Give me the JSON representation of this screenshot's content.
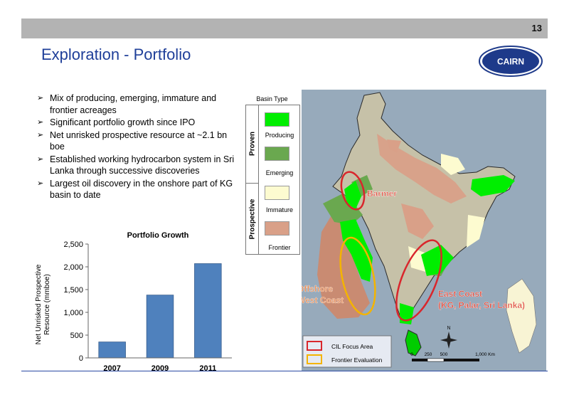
{
  "page": {
    "number": "13",
    "title": "Exploration - Portfolio"
  },
  "logo": {
    "text": "CAIRN"
  },
  "bullets": [
    "Mix of producing, emerging, immature and frontier acreages",
    "Significant portfolio growth since IPO",
    "Net unrisked prospective resource at ~2.1 bn boe",
    "Established working hydrocarbon system in Sri Lanka through successive discoveries",
    "Largest oil discovery in the onshore part of KG basin to date"
  ],
  "chart_data": {
    "type": "bar",
    "title": "Portfolio Growth",
    "ylabel_lines": [
      "Net Unrisked Prospective",
      "Resource (mmboe)"
    ],
    "categories": [
      "2007",
      "2009",
      "2011"
    ],
    "values": [
      350,
      1380,
      2070
    ],
    "ylim": [
      0,
      2500
    ],
    "yticks": [
      "0",
      "500",
      "1,000",
      "1,500",
      "2,000",
      "2,500"
    ],
    "bar_color": "#4f81bd",
    "grid": false
  },
  "legend": {
    "header": "Basin Type",
    "groups": {
      "proven": "Proven",
      "prospective": "Prospective"
    },
    "items": [
      {
        "label": "Producing",
        "color": "#00ee00"
      },
      {
        "label": "Emerging",
        "color": "#6aa84f"
      },
      {
        "label": "Immature",
        "color": "#fdfbd0"
      },
      {
        "label": "Frontier",
        "color": "#d9a088"
      }
    ]
  },
  "map": {
    "labels": {
      "barmer": "Barmer",
      "offshore_line1": "Offshore",
      "offshore_line2": "West Coast",
      "east_line1": "East Coast",
      "east_line2": "(KG, Palar, Sri Lanka)"
    },
    "key": {
      "focus": "CIL Focus Area",
      "frontier": "Frontier Evaluation"
    },
    "scale": {
      "t0": "0",
      "t1": "250",
      "t2": "500",
      "t3": "1,000 Km"
    },
    "compass": "N",
    "colors": {
      "focus": "#d9262c",
      "frontier": "#f4b400",
      "label_red": "#e04b3c"
    }
  }
}
